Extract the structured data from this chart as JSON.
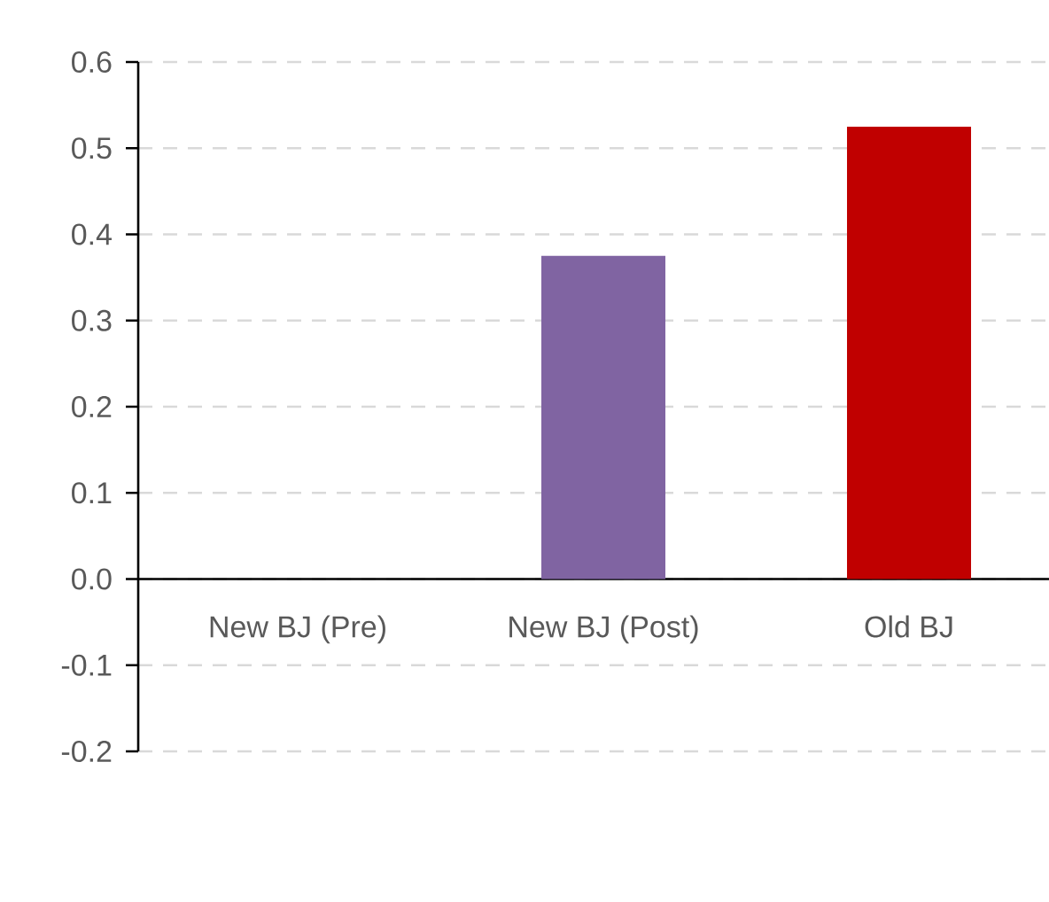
{
  "chart_data": {
    "type": "bar",
    "categories": [
      "New BJ (Pre)",
      "New BJ (Post)",
      "Old BJ"
    ],
    "values": [
      null,
      0.375,
      0.525
    ],
    "colors": [
      null,
      "#8064a2",
      "#c00000"
    ],
    "ylim": [
      -0.2,
      0.6
    ],
    "yticks": [
      -0.2,
      -0.1,
      {
        "value": 0,
        "label": "0.0"
      },
      0.1,
      0.2,
      0.3,
      0.4,
      0.5,
      0.6
    ],
    "grid": "y"
  }
}
